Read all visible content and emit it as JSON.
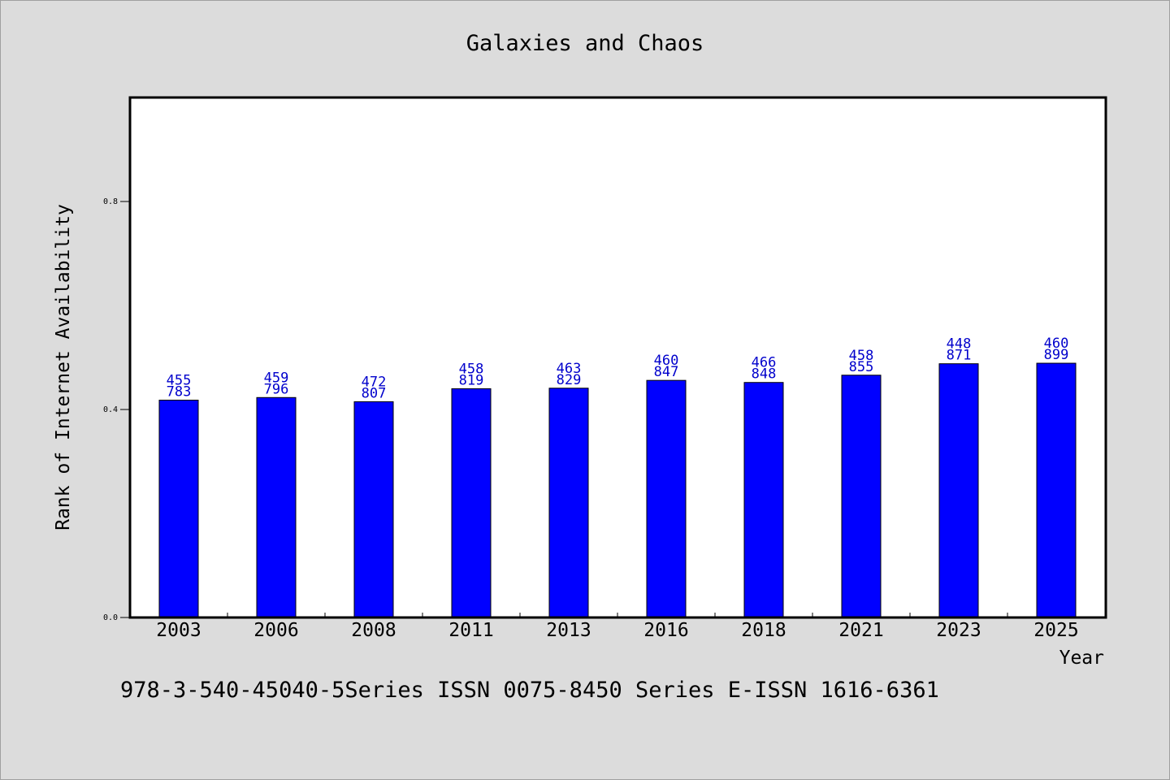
{
  "chart_data": {
    "type": "bar",
    "title": "Galaxies and Chaos",
    "xlabel": "Year",
    "ylabel": "Rank of Internet Availability",
    "categories": [
      "2003",
      "2006",
      "2008",
      "2011",
      "2013",
      "2016",
      "2018",
      "2021",
      "2023",
      "2025"
    ],
    "values": [
      0.418,
      0.423,
      0.415,
      0.44,
      0.441,
      0.456,
      0.452,
      0.466,
      0.488,
      0.489
    ],
    "data_labels": [
      [
        "455",
        "783"
      ],
      [
        "459",
        "796"
      ],
      [
        "472",
        "807"
      ],
      [
        "458",
        "819"
      ],
      [
        "463",
        "829"
      ],
      [
        "460",
        "847"
      ],
      [
        "466",
        "848"
      ],
      [
        "458",
        "855"
      ],
      [
        "448",
        "871"
      ],
      [
        "460",
        "899"
      ]
    ],
    "ylim": [
      0,
      1.0
    ],
    "yticks": [
      0.0,
      0.4,
      0.8
    ],
    "ytick_labels": [
      "0.0",
      "0.4",
      "0.8"
    ],
    "grid": false,
    "legend": "none",
    "colors": {
      "bar": "#0000ff",
      "bar_edge": "#000000",
      "data_label": "#0000cc",
      "plot_background": "#ffffff",
      "figure_background": "#dcdcdc"
    }
  },
  "caption": "978-3-540-45040-5Series ISSN 0075-8450 Series E-ISSN 1616-6361"
}
